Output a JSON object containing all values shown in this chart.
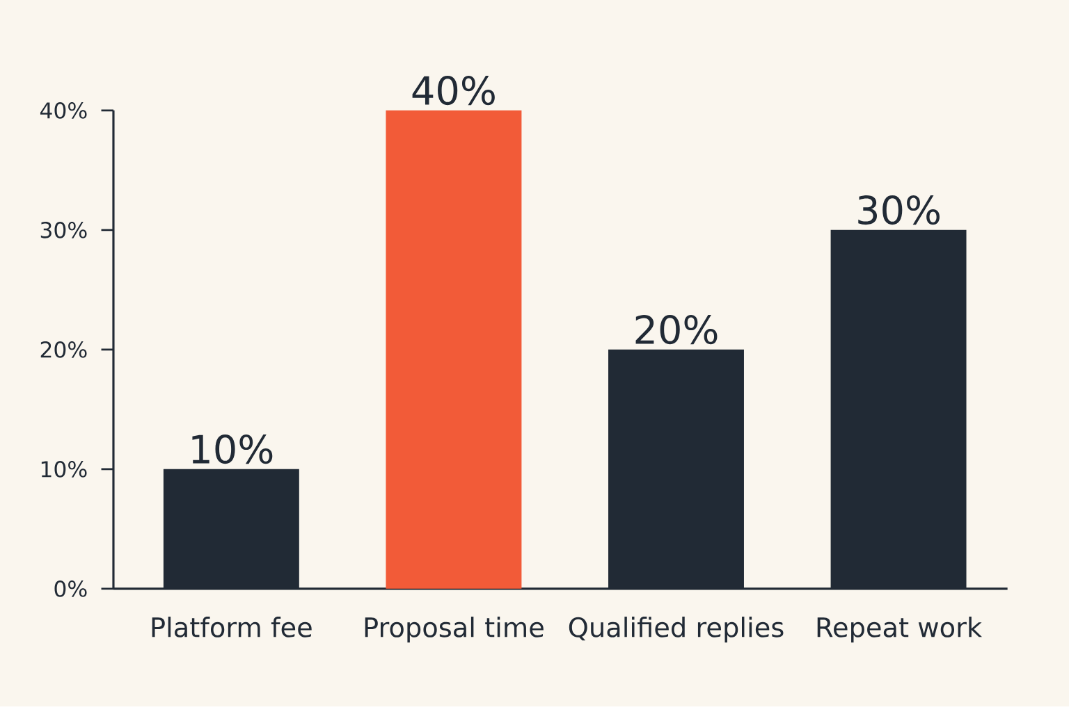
{
  "chart_data": {
    "type": "bar",
    "categories": [
      "Platform fee",
      "Proposal time",
      "Qualified replies",
      "Repeat work"
    ],
    "values": [
      10,
      40,
      20,
      30
    ],
    "colors": [
      "#212a35",
      "#f25b38",
      "#212a35",
      "#212a35"
    ],
    "value_labels": [
      "10%",
      "40%",
      "20%",
      "30%"
    ],
    "ylim": [
      0,
      40
    ],
    "yticks": [
      {
        "value": 0,
        "label": "0%"
      },
      {
        "value": 10,
        "label": "10%"
      },
      {
        "value": 20,
        "label": "20%"
      },
      {
        "value": 30,
        "label": "30%"
      },
      {
        "value": 40,
        "label": "40%"
      }
    ],
    "grid": false
  }
}
